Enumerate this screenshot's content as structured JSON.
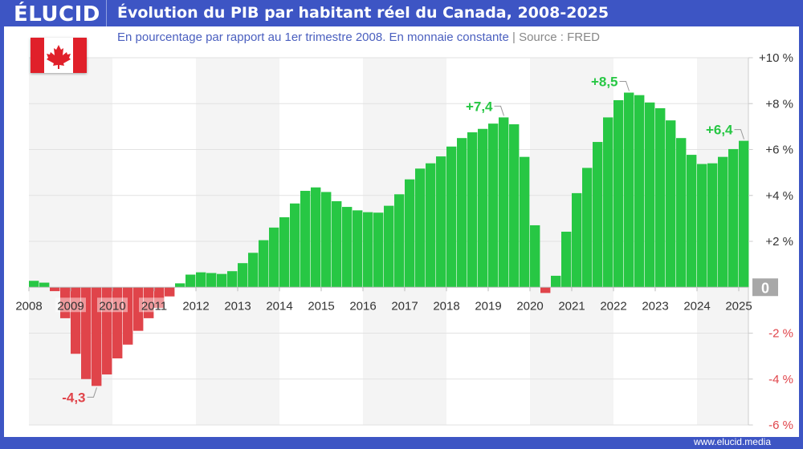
{
  "header": {
    "logo": "ÉLUCID",
    "title": "Évolution du PIB par habitant réel du Canada, 2008-2025"
  },
  "subtitle": {
    "text": "En pourcentage par rapport au 1er trimestre 2008. En monnaie constante",
    "separator": "|",
    "source": "Source : FRED"
  },
  "flag": {
    "icon": "canada-flag-icon",
    "red": "#e0202a"
  },
  "footer": {
    "url": "www.elucid.media"
  },
  "colors": {
    "brand": "#3d55c4",
    "positive": "#27c744",
    "negative": "#e0444a",
    "band": "#f4f4f4"
  },
  "chart_data": {
    "type": "bar",
    "title": "Évolution du PIB par habitant réel du Canada, 2008-2025",
    "ylabel": "",
    "xlabel": "",
    "ylim": [
      -6,
      10
    ],
    "grid": true,
    "frequency": "quarterly",
    "start": "2008 T1",
    "year_labels": [
      "2008",
      "2009",
      "2010",
      "2011",
      "2012",
      "2013",
      "2014",
      "2015",
      "2016",
      "2017",
      "2018",
      "2019",
      "2020",
      "2021",
      "2022",
      "2023",
      "2024",
      "2025"
    ],
    "y_ticks": [
      {
        "v": 10,
        "label": "+10 %"
      },
      {
        "v": 8,
        "label": "+8 %"
      },
      {
        "v": 6,
        "label": "+6 %"
      },
      {
        "v": 4,
        "label": "+4 %"
      },
      {
        "v": 2,
        "label": "+2 %"
      },
      {
        "v": 0,
        "label": "0"
      },
      {
        "v": -2,
        "label": "-2 %"
      },
      {
        "v": -4,
        "label": "-4 %"
      },
      {
        "v": -6,
        "label": "-6 %"
      }
    ],
    "values": [
      0.28,
      0.2,
      -0.17,
      -1.35,
      -2.9,
      -4.0,
      -4.3,
      -3.8,
      -3.1,
      -2.5,
      -1.9,
      -1.35,
      -0.9,
      -0.4,
      0.17,
      0.55,
      0.65,
      0.62,
      0.58,
      0.7,
      1.05,
      1.5,
      2.05,
      2.6,
      3.05,
      3.65,
      4.2,
      4.35,
      4.15,
      3.75,
      3.5,
      3.35,
      3.27,
      3.25,
      3.55,
      4.05,
      4.7,
      5.17,
      5.4,
      5.7,
      6.13,
      6.5,
      6.75,
      6.9,
      7.13,
      7.4,
      7.1,
      5.68,
      2.7,
      -0.25,
      0.5,
      2.42,
      4.1,
      5.2,
      6.33,
      7.4,
      8.15,
      8.48,
      8.37,
      8.05,
      7.8,
      7.27,
      6.5,
      5.77,
      5.37,
      5.4,
      5.68,
      6.02,
      6.38
    ],
    "annotations": [
      {
        "index": 6,
        "label": "-4,3"
      },
      {
        "index": 45,
        "label": "+7,4"
      },
      {
        "index": 57,
        "label": "+8,5"
      },
      {
        "index": 68,
        "label": "+6,4"
      }
    ]
  }
}
